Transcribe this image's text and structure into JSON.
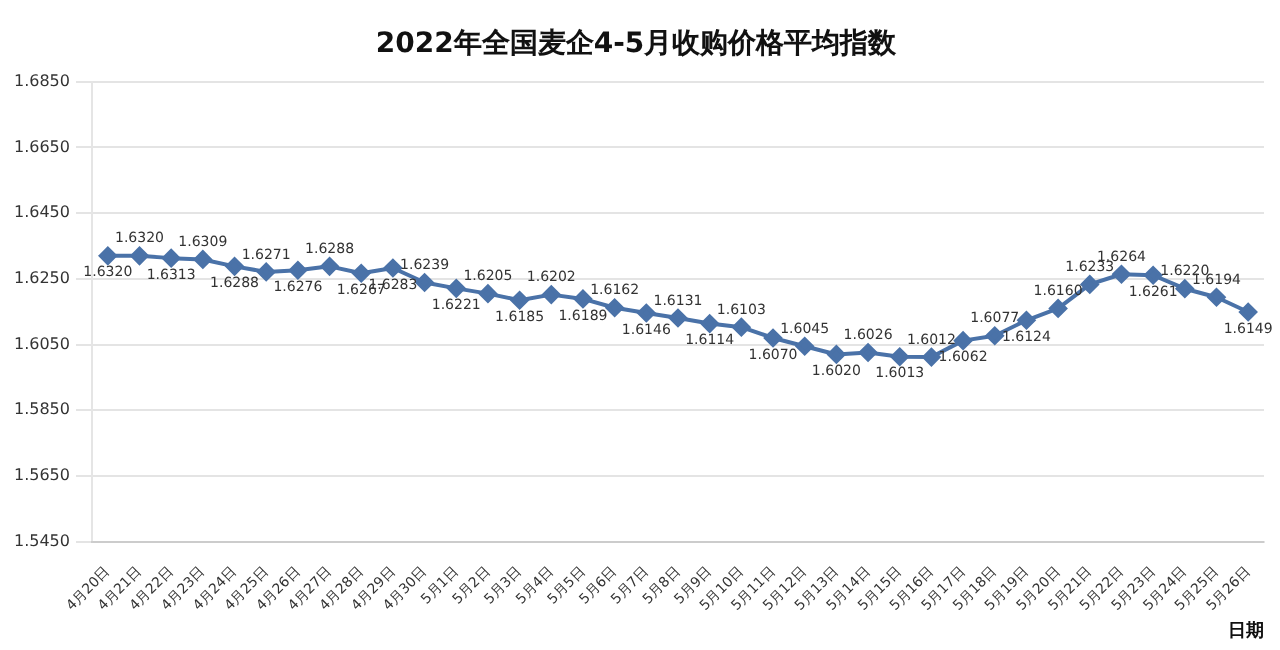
{
  "chart_data": {
    "type": "line",
    "title": "2022年全国麦企4-5月收购价格平均指数",
    "xlabel": "日期",
    "categories": [
      "4月20日",
      "4月21日",
      "4月22日",
      "4月23日",
      "4月24日",
      "4月25日",
      "4月26日",
      "4月27日",
      "4月28日",
      "4月29日",
      "4月30日",
      "5月1日",
      "5月2日",
      "5月3日",
      "5月4日",
      "5月5日",
      "5月6日",
      "5月7日",
      "5月8日",
      "5月9日",
      "5月10日",
      "5月11日",
      "5月12日",
      "5月13日",
      "5月14日",
      "5月15日",
      "5月16日",
      "5月17日",
      "5月18日",
      "5月19日",
      "5月20日",
      "5月21日",
      "5月22日",
      "5月23日",
      "5月24日",
      "5月25日",
      "5月26日"
    ],
    "series": [
      {
        "color": "#4a72a8",
        "values": [
          1.632,
          1.632,
          1.6313,
          1.6309,
          1.6288,
          1.6271,
          1.6276,
          1.6288,
          1.6267,
          1.6283,
          1.6239,
          1.6221,
          1.6205,
          1.6185,
          1.6202,
          1.6189,
          1.6162,
          1.6146,
          1.6131,
          1.6114,
          1.6103,
          1.607,
          1.6045,
          1.602,
          1.6026,
          1.6013,
          1.6012,
          1.6062,
          1.6077,
          1.6124,
          1.616,
          1.6233,
          1.6264,
          1.6261,
          1.622,
          1.6194,
          1.6149
        ],
        "value_labels": [
          "1.6320",
          "1.6320",
          "1.6313",
          "1.6309",
          "1.6288",
          "1.6271",
          "1.6276",
          "1.6288",
          "1.6267",
          "1.6283",
          "1.6239",
          "1.6221",
          "1.6205",
          "1.6185",
          "1.6202",
          "1.6189",
          "1.6162",
          "1.6146",
          "1.6131",
          "1.6114",
          "1.6103",
          "1.6070",
          "1.6045",
          "1.6020",
          "1.6026",
          "1.6013",
          "1.6012",
          "1.6062",
          "1.6077",
          "1.6124",
          "1.6160",
          "1.6233",
          "1.6264",
          "1.6261",
          "1.6220",
          "1.6194",
          "1.6149"
        ]
      }
    ],
    "ylim": [
      1.545,
      1.685
    ],
    "yticks": [
      {
        "value": 1.545,
        "label": "1.5450"
      },
      {
        "value": 1.565,
        "label": "1.5650"
      },
      {
        "value": 1.585,
        "label": "1.5850"
      },
      {
        "value": 1.605,
        "label": "1.6050"
      },
      {
        "value": 1.625,
        "label": "1.6250"
      },
      {
        "value": 1.645,
        "label": "1.6450"
      },
      {
        "value": 1.665,
        "label": "1.6650"
      },
      {
        "value": 1.685,
        "label": "1.6850"
      }
    ],
    "grid": "y",
    "marker": "diamond",
    "line_style": "solid",
    "legend": false
  }
}
